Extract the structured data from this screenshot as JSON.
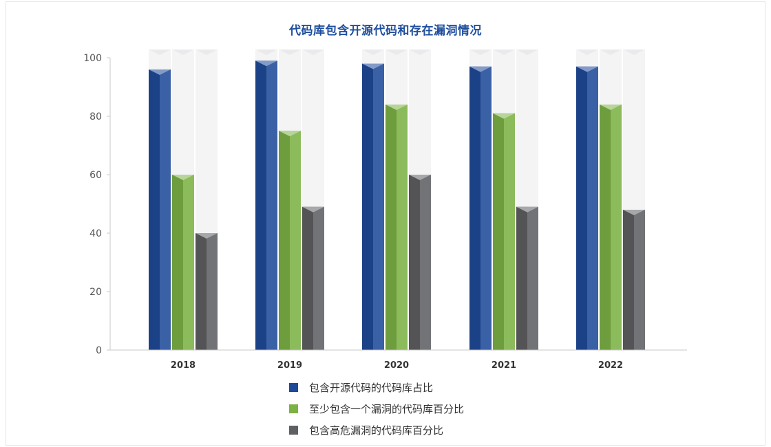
{
  "chart_data": {
    "type": "bar",
    "title": "代码库包含开源代码和存在漏洞情况",
    "categories": [
      "2018",
      "2019",
      "2020",
      "2021",
      "2022"
    ],
    "series": [
      {
        "name": "包含开源代码的代码库占比",
        "values": [
          96,
          99,
          98,
          97,
          97
        ],
        "color": "#1f4a99"
      },
      {
        "name": "至少包含一个漏洞的代码库百分比",
        "values": [
          60,
          75,
          84,
          81,
          84
        ],
        "color": "#7cb245"
      },
      {
        "name": "包含高危漏洞的代码库百分比",
        "values": [
          40,
          49,
          60,
          49,
          48
        ],
        "color": "#5f6063"
      }
    ],
    "ylim": [
      0,
      100
    ],
    "yticks": [
      0,
      20,
      40,
      60,
      80,
      100
    ],
    "xlabel": "",
    "ylabel": "",
    "legend_position": "bottom",
    "grid": false
  }
}
